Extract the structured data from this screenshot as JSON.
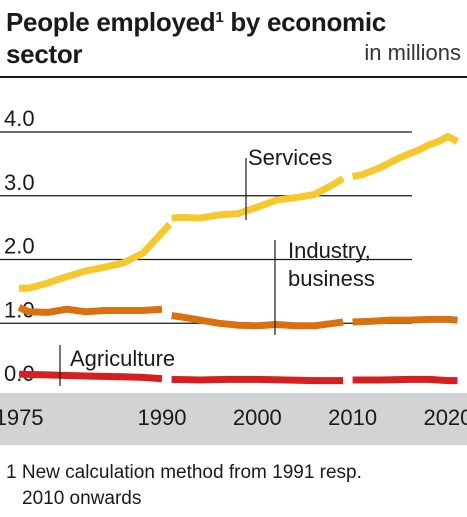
{
  "header": {
    "title_part1": "People employed",
    "title_sup": "1",
    "title_part2": " by economic sector",
    "unit": "in millions"
  },
  "footnote": {
    "line1": "1 New calculation method from 1991 resp.",
    "line2": "2010 onwards"
  },
  "colors": {
    "services": "#f5c92e",
    "industry": "#d9710f",
    "agriculture": "#d42020",
    "axis_band": "#d1d3d4",
    "grid": "#1a1a1a"
  },
  "chart_data": {
    "type": "line",
    "title": "People employed by economic sector",
    "unit": "in millions",
    "ylim": [
      0,
      4.2
    ],
    "yticks": [
      0,
      1,
      2,
      3,
      4
    ],
    "ytick_labels": [
      "0.0",
      "1.0",
      "2.0",
      "3.0",
      "4.0"
    ],
    "xlim": [
      1973,
      2022
    ],
    "xticks": [
      1975,
      1990,
      2000,
      2010,
      2020
    ],
    "xtick_labels": [
      "1975",
      "1990",
      "2000",
      "2010",
      "2020"
    ],
    "grid": true,
    "series": [
      {
        "name": "Services",
        "label_lines": [
          "Services"
        ],
        "color_key": "services",
        "segments": [
          [
            [
              1975,
              1.55
            ],
            [
              1976,
              1.55
            ],
            [
              1978,
              1.63
            ],
            [
              1980,
              1.73
            ],
            [
              1982,
              1.82
            ],
            [
              1984,
              1.88
            ],
            [
              1986,
              1.95
            ],
            [
              1988,
              2.1
            ],
            [
              1990,
              2.42
            ],
            [
              1990.8,
              2.55
            ]
          ],
          [
            [
              1991,
              2.65
            ],
            [
              1992,
              2.66
            ],
            [
              1994,
              2.65
            ],
            [
              1996,
              2.7
            ],
            [
              1998,
              2.72
            ],
            [
              2000,
              2.82
            ],
            [
              2002,
              2.93
            ],
            [
              2004,
              2.97
            ],
            [
              2006,
              3.02
            ],
            [
              2008,
              3.18
            ],
            [
              2009,
              3.27
            ]
          ],
          [
            [
              2010,
              3.3
            ],
            [
              2011,
              3.33
            ],
            [
              2013,
              3.45
            ],
            [
              2015,
              3.6
            ],
            [
              2017,
              3.72
            ],
            [
              2018,
              3.8
            ],
            [
              2019,
              3.85
            ],
            [
              2020,
              3.93
            ],
            [
              2021,
              3.85
            ]
          ]
        ]
      },
      {
        "name": "Industry, business",
        "label_lines": [
          "Industry,",
          "business"
        ],
        "color_key": "industry",
        "segments": [
          [
            [
              1975,
              1.25
            ],
            [
              1976,
              1.18
            ],
            [
              1978,
              1.17
            ],
            [
              1980,
              1.22
            ],
            [
              1982,
              1.18
            ],
            [
              1984,
              1.2
            ],
            [
              1986,
              1.2
            ],
            [
              1988,
              1.2
            ],
            [
              1990,
              1.22
            ]
          ],
          [
            [
              1991,
              1.12
            ],
            [
              1992,
              1.1
            ],
            [
              1994,
              1.05
            ],
            [
              1996,
              1.0
            ],
            [
              1998,
              0.97
            ],
            [
              2000,
              0.96
            ],
            [
              2002,
              0.98
            ],
            [
              2004,
              0.96
            ],
            [
              2006,
              0.96
            ],
            [
              2008,
              1.0
            ],
            [
              2009,
              1.02
            ]
          ],
          [
            [
              2010,
              1.02
            ],
            [
              2012,
              1.03
            ],
            [
              2014,
              1.05
            ],
            [
              2016,
              1.05
            ],
            [
              2018,
              1.06
            ],
            [
              2020,
              1.06
            ],
            [
              2021,
              1.05
            ]
          ]
        ]
      },
      {
        "name": "Agriculture",
        "label_lines": [
          "Agriculture"
        ],
        "color_key": "agriculture",
        "segments": [
          [
            [
              1975,
              0.2
            ],
            [
              1978,
              0.19
            ],
            [
              1980,
              0.18
            ],
            [
              1983,
              0.17
            ],
            [
              1986,
              0.16
            ],
            [
              1988,
              0.15
            ],
            [
              1990,
              0.13
            ]
          ],
          [
            [
              1991,
              0.12
            ],
            [
              1994,
              0.11
            ],
            [
              1997,
              0.12
            ],
            [
              2000,
              0.12
            ],
            [
              2003,
              0.11
            ],
            [
              2006,
              0.1
            ],
            [
              2009,
              0.1
            ]
          ],
          [
            [
              2010,
              0.11
            ],
            [
              2013,
              0.11
            ],
            [
              2016,
              0.12
            ],
            [
              2018,
              0.12
            ],
            [
              2020,
              0.1
            ],
            [
              2021,
              0.1
            ]
          ]
        ]
      }
    ]
  }
}
